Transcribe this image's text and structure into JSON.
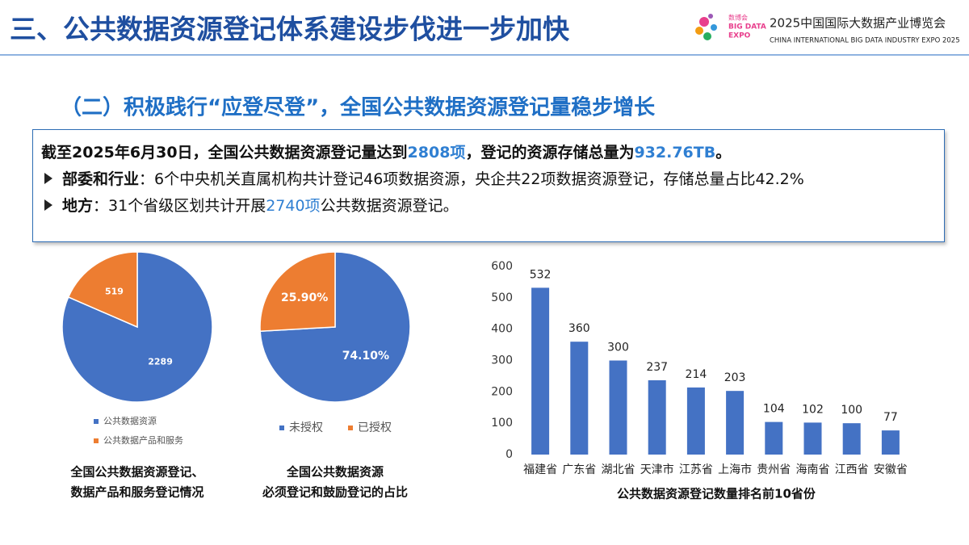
{
  "header": {
    "title": "三、公共数据资源登记体系建设步伐进一步加快",
    "logo": {
      "mark_lines": [
        "数博会",
        "BIG DATA",
        "EXPO"
      ],
      "name": "2025中国国际大数据产业博览会",
      "name_en": "CHINA INTERNATIONAL BIG DATA INDUSTRY EXPO 2025"
    }
  },
  "section_title": "（二）积极践行“应登尽登”，全国公共数据资源登记量稳步增长",
  "summary": {
    "lines": [
      {
        "bullet": false,
        "runs": [
          {
            "text": "截至2025年6月30日，全国公共数据资源登记量达到",
            "style": "bold"
          },
          {
            "text": "2808项",
            "style": "bold-blue"
          },
          {
            "text": "，登记的资源存储总量为",
            "style": "bold"
          },
          {
            "text": "932.76TB",
            "style": "bold-blue"
          },
          {
            "text": "。",
            "style": "bold"
          }
        ]
      },
      {
        "bullet": true,
        "runs": [
          {
            "text": "部委和行业",
            "style": "bold"
          },
          {
            "text": "：6个中央机关直属机构共计登记46项数据资源，央企共22项数据资源登记，存储总量占比42.2%",
            "style": "normal"
          }
        ]
      },
      {
        "bullet": true,
        "runs": [
          {
            "text": "地方",
            "style": "bold"
          },
          {
            "text": "：31个省级区划共计开展",
            "style": "normal"
          },
          {
            "text": "2740项",
            "style": "blue"
          },
          {
            "text": "公共数据资源登记。",
            "style": "normal"
          }
        ]
      }
    ]
  },
  "chart_data": [
    {
      "type": "pie",
      "title": [
        "全国公共数据资源登记、",
        "数据产品和服务登记情况"
      ],
      "categories": [
        "公共数据资源",
        "公共数据产品和服务"
      ],
      "values": [
        2289,
        519
      ],
      "colors": [
        "#4472c4",
        "#ed7d31"
      ],
      "legend": "bottom",
      "legend_direction": "column"
    },
    {
      "type": "pie",
      "title": [
        "全国公共数据资源",
        "必须登记和鼓励登记的占比"
      ],
      "categories": [
        "未授权",
        "已授权"
      ],
      "values": [
        74.1,
        25.9
      ],
      "value_labels": [
        "74.10%",
        "25.90%"
      ],
      "colors": [
        "#4472c4",
        "#ed7d31"
      ],
      "legend": "bottom",
      "legend_direction": "row"
    },
    {
      "type": "bar",
      "title": "公共数据资源登记数量排名前10省份",
      "categories": [
        "福建省",
        "广东省",
        "湖北省",
        "天津市",
        "江苏省",
        "上海市",
        "贵州省",
        "海南省",
        "江西省",
        "安徽省"
      ],
      "values": [
        532,
        360,
        300,
        237,
        214,
        203,
        104,
        102,
        100,
        77
      ],
      "color": "#4472c4",
      "ylim": [
        0,
        600
      ],
      "yticks": [
        0,
        100,
        200,
        300,
        400,
        500,
        600
      ],
      "grid": false
    }
  ]
}
